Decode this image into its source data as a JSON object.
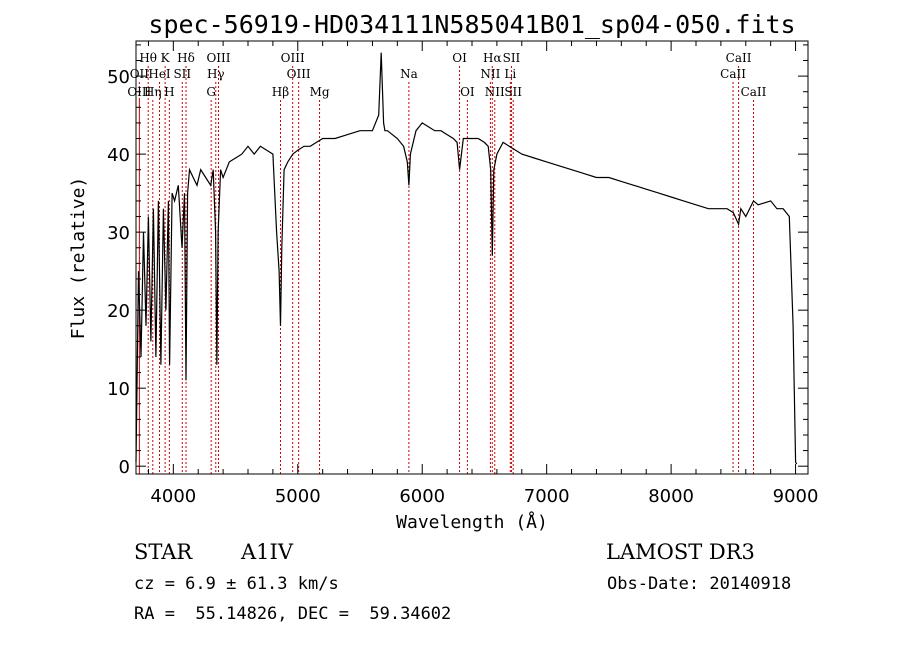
{
  "chart_data": {
    "type": "line",
    "title": "spec-56919-HD034111N585041B01_sp04-050.fits",
    "xlabel": "Wavelength (Å)",
    "ylabel": "Flux (relative)",
    "xlim": [
      3700,
      9100
    ],
    "ylim": [
      -1,
      54.5
    ],
    "xticks": [
      4000,
      5000,
      6000,
      7000,
      8000,
      9000
    ],
    "yticks": [
      0,
      10,
      20,
      30,
      40,
      50
    ],
    "series": [
      {
        "name": "flux",
        "x": [
          3700,
          3720,
          3740,
          3760,
          3780,
          3800,
          3820,
          3840,
          3860,
          3880,
          3900,
          3920,
          3940,
          3960,
          3970,
          3990,
          4010,
          4040,
          4070,
          4090,
          4102,
          4115,
          4130,
          4160,
          4190,
          4220,
          4260,
          4300,
          4320,
          4340,
          4350,
          4360,
          4380,
          4400,
          4450,
          4500,
          4550,
          4600,
          4650,
          4700,
          4750,
          4800,
          4830,
          4850,
          4861,
          4872,
          4890,
          4920,
          4960,
          5000,
          5050,
          5100,
          5150,
          5200,
          5300,
          5400,
          5500,
          5600,
          5650,
          5670,
          5690,
          5700,
          5720,
          5800,
          5850,
          5880,
          5893,
          5905,
          5950,
          6000,
          6050,
          6100,
          6150,
          6200,
          6250,
          6280,
          6300,
          6330,
          6350,
          6400,
          6450,
          6500,
          6530,
          6550,
          6563,
          6575,
          6600,
          6650,
          6700,
          6800,
          6900,
          7000,
          7100,
          7200,
          7300,
          7400,
          7500,
          7600,
          7700,
          7800,
          7900,
          8000,
          8100,
          8200,
          8300,
          8400,
          8450,
          8500,
          8542,
          8560,
          8600,
          8662,
          8700,
          8800,
          8850,
          8900,
          8950,
          8980,
          9000,
          9010
        ],
        "y": [
          0.5,
          25,
          14,
          30,
          18,
          32,
          16,
          33,
          14,
          34,
          13,
          33,
          20,
          34,
          13,
          35,
          34,
          36,
          28,
          35,
          11,
          35,
          38,
          37,
          36,
          38,
          37,
          36,
          38,
          30,
          13,
          30,
          38,
          37,
          39,
          39.5,
          40,
          41,
          40,
          41,
          40.5,
          40,
          30,
          25,
          18,
          28,
          38,
          39,
          40,
          40.5,
          41,
          41,
          41.5,
          42,
          42,
          42.5,
          43,
          43,
          45,
          53,
          44,
          43,
          43,
          42,
          41,
          39,
          36,
          40,
          43,
          44,
          43.5,
          43,
          43,
          42.5,
          42,
          41.5,
          38,
          42,
          42,
          42,
          42,
          41.5,
          41,
          38,
          27,
          38,
          40,
          41.5,
          41,
          40,
          39.5,
          39,
          38.5,
          38,
          37.5,
          37,
          37,
          36.5,
          36,
          35.5,
          35,
          34.5,
          34,
          33.5,
          33,
          33,
          33,
          32.5,
          31,
          33,
          32,
          34,
          33.5,
          34,
          33,
          33,
          32,
          18,
          0.5,
          0.3
        ]
      }
    ],
    "line_markers": [
      {
        "label": "Hθ",
        "wavelength": 3798,
        "row": 1
      },
      {
        "label": "K",
        "wavelength": 3934,
        "row": 1
      },
      {
        "label": "Hδ",
        "wavelength": 4102,
        "row": 1
      },
      {
        "label": "OIII",
        "wavelength": 4363,
        "row": 1
      },
      {
        "label": "OIII",
        "wavelength": 4959,
        "row": 1
      },
      {
        "label": "OI",
        "wavelength": 6300,
        "row": 1
      },
      {
        "label": "Hα",
        "wavelength": 6563,
        "row": 1
      },
      {
        "label": "SII",
        "wavelength": 6717,
        "row": 1
      },
      {
        "label": "CaII",
        "wavelength": 8542,
        "row": 1
      },
      {
        "label": "OII",
        "wavelength": 3727,
        "row": 2
      },
      {
        "label": "HeI",
        "wavelength": 3889,
        "row": 2
      },
      {
        "label": "SII",
        "wavelength": 4072,
        "row": 2
      },
      {
        "label": "Hγ",
        "wavelength": 4341,
        "row": 2
      },
      {
        "label": "OIII",
        "wavelength": 5007,
        "row": 2
      },
      {
        "label": "Na",
        "wavelength": 5893,
        "row": 2
      },
      {
        "label": "NII",
        "wavelength": 6548,
        "row": 2
      },
      {
        "label": "Li",
        "wavelength": 6708,
        "row": 2
      },
      {
        "label": "CaII",
        "wavelength": 8498,
        "row": 2
      },
      {
        "label": "OIII",
        "wavelength": 3727,
        "row": 3
      },
      {
        "label": "Hη",
        "wavelength": 3835,
        "row": 3
      },
      {
        "label": "H",
        "wavelength": 3968,
        "row": 3
      },
      {
        "label": "G",
        "wavelength": 4304,
        "row": 3
      },
      {
        "label": "Hβ",
        "wavelength": 4861,
        "row": 3
      },
      {
        "label": "Mg",
        "wavelength": 5175,
        "row": 3
      },
      {
        "label": "OI",
        "wavelength": 6363,
        "row": 3
      },
      {
        "label": "NII",
        "wavelength": 6583,
        "row": 3
      },
      {
        "label": "SII",
        "wavelength": 6731,
        "row": 3
      },
      {
        "label": "CaII",
        "wavelength": 8662,
        "row": 3
      }
    ],
    "grid": false,
    "line_color": "#000000",
    "marker_color": "#cc0000"
  },
  "info": {
    "object_class": "STAR",
    "subclass": "A1IV",
    "survey": "LAMOST DR3",
    "cz": "cz = 6.9 ± 61.3 km/s",
    "obs_date": "Obs-Date: 20140918",
    "coords": "RA =  55.14826, DEC =  59.34602"
  }
}
